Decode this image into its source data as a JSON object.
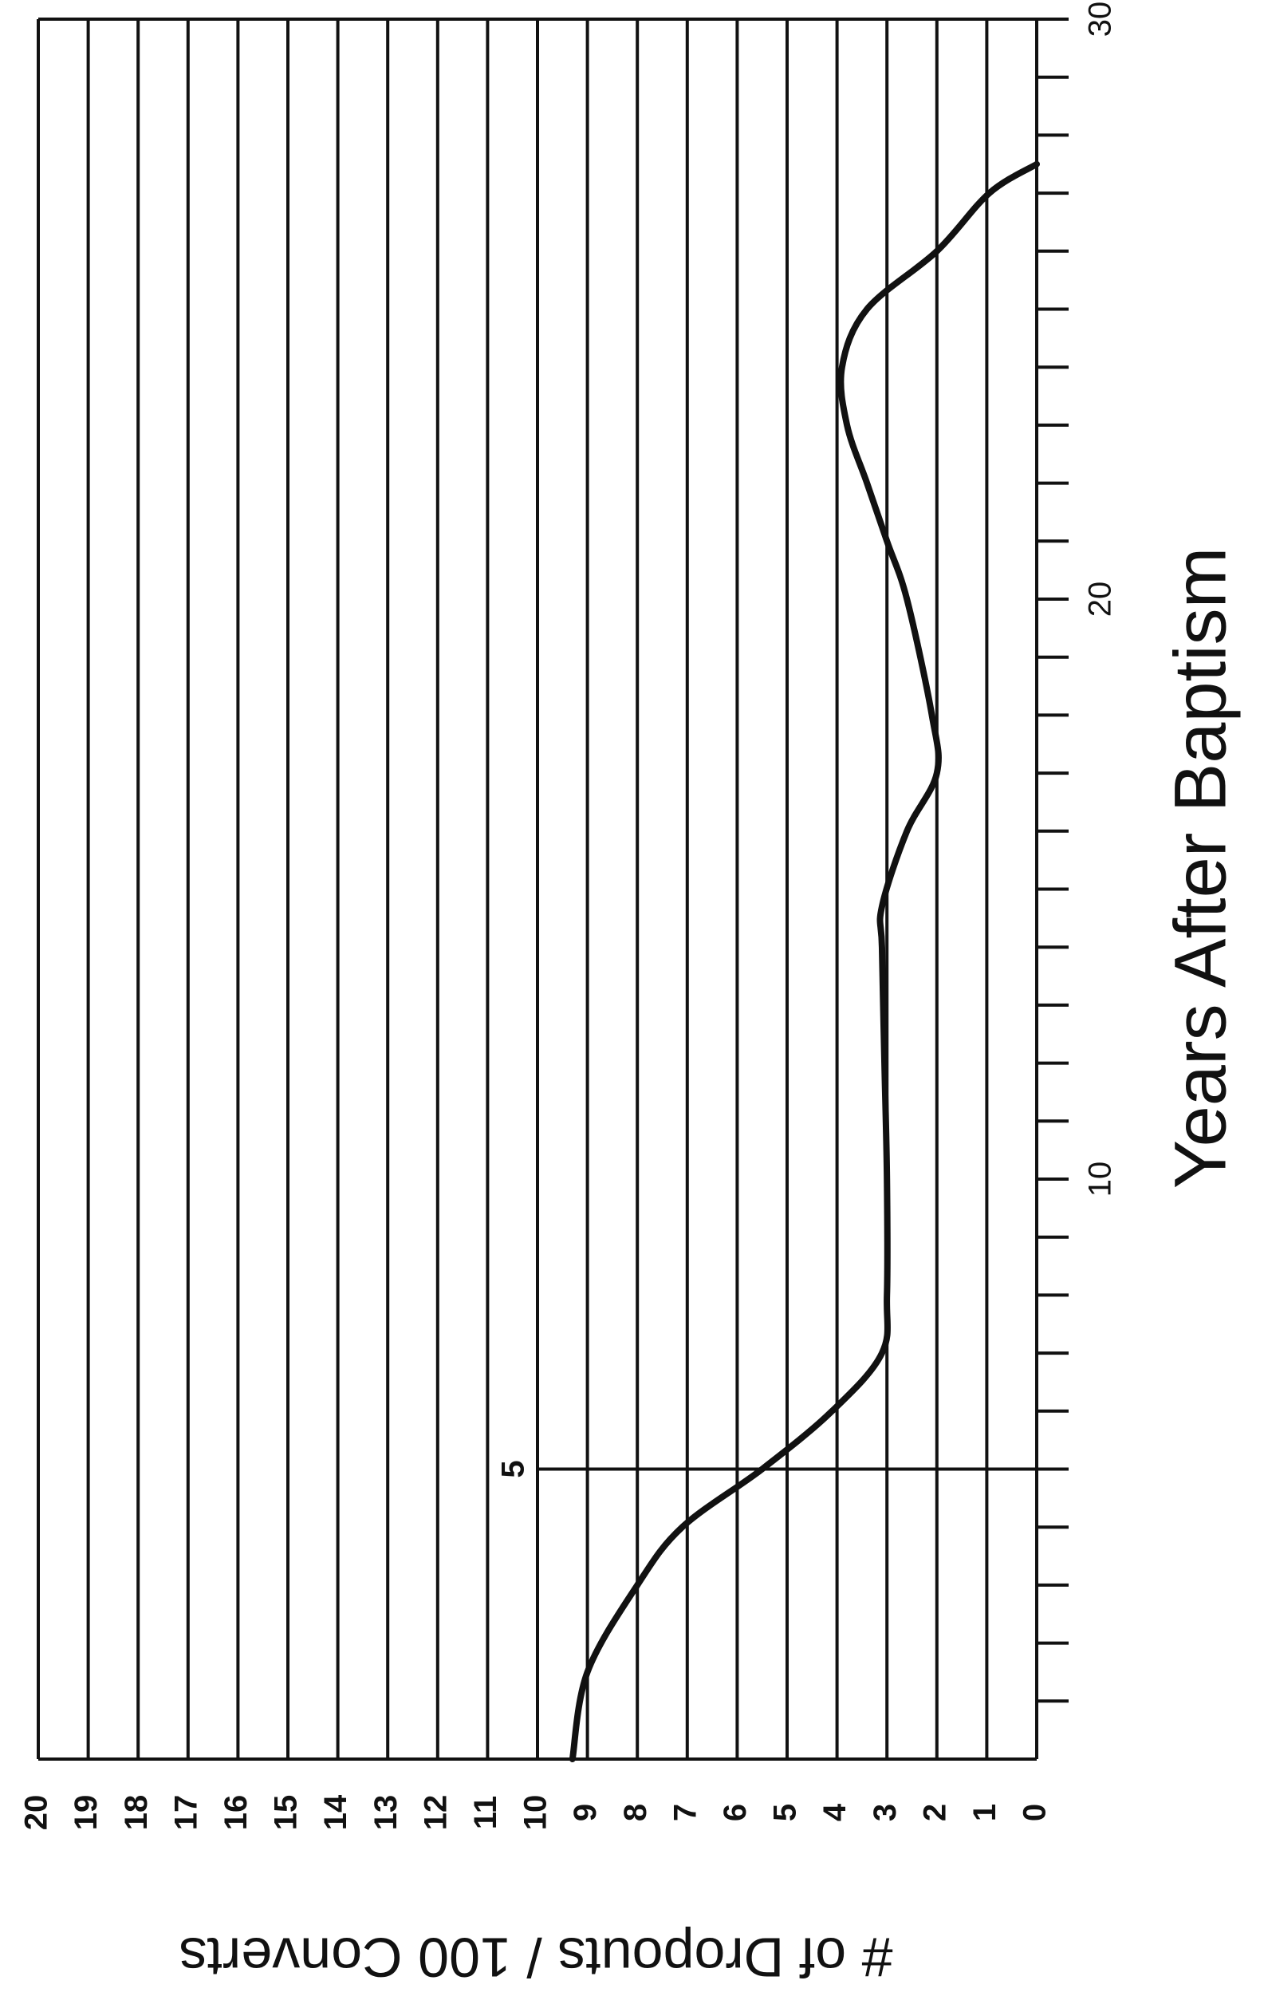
{
  "chart_data": {
    "type": "line",
    "x_label": "Years After Baptism",
    "y_label": "# of Dropouts / 100 Converts",
    "x": [
      0,
      1.5,
      3,
      4,
      5,
      6,
      7,
      8,
      10,
      12,
      14,
      14.7,
      16,
      17,
      18,
      20,
      21,
      22,
      23,
      24,
      25,
      26,
      27,
      27.5
    ],
    "series": [
      {
        "name": "Dropouts",
        "color": "#111111",
        "values": [
          9.3,
          9.0,
          8.0,
          7.1,
          5.5,
          4.1,
          3.1,
          3.0,
          3.0,
          3.05,
          3.1,
          3.1,
          2.6,
          2.0,
          2.1,
          2.6,
          3.0,
          3.4,
          3.8,
          3.9,
          3.4,
          2.0,
          0.95,
          0
        ]
      }
    ],
    "xlim": [
      0,
      30
    ],
    "xticks": [
      10,
      20,
      30
    ],
    "xticks_minor": [
      1,
      2,
      3,
      4,
      6,
      7,
      8,
      9,
      11,
      12,
      13,
      14,
      15,
      16,
      17,
      18,
      19,
      21,
      22,
      23,
      24,
      25,
      26,
      27,
      28,
      29
    ],
    "ylim": [
      0,
      20
    ],
    "yticks": [
      0,
      1,
      2,
      3,
      4,
      5,
      6,
      7,
      8,
      9,
      10,
      11,
      12,
      13,
      14,
      15,
      16,
      17,
      18,
      19,
      20
    ],
    "grid": true,
    "annotations": [
      {
        "label": "5",
        "x": 5,
        "y_top": 10
      }
    ]
  }
}
